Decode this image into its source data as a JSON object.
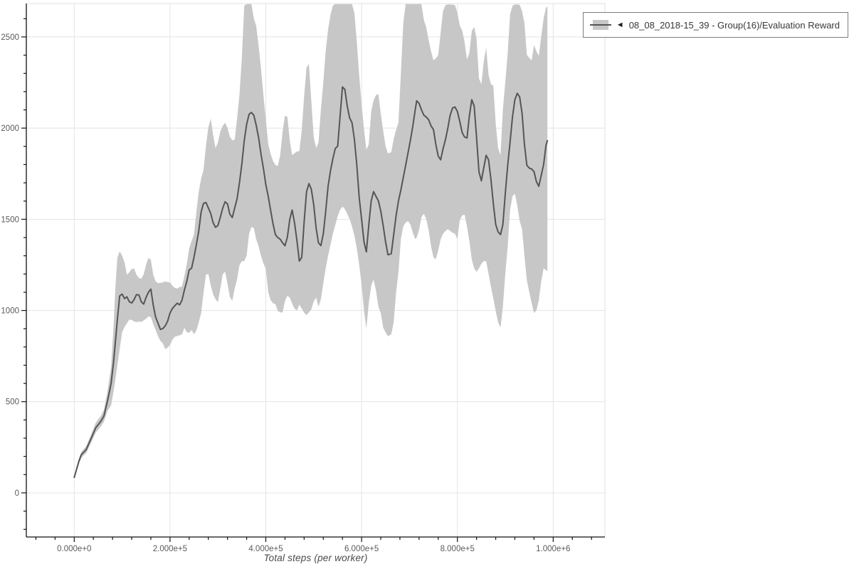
{
  "colors": {
    "line": "#555555",
    "band": "#c7c7c7",
    "grid": "#e4e4e4",
    "plot_border": "#e0e0e0",
    "axis": "#111111",
    "tick_text": "#5a5a5a",
    "legend_border": "#7d7d7d",
    "background": "#ffffff"
  },
  "legend": {
    "collapse_icon": "◄",
    "label": "08_08_2018-15_39 - Group(16)/Evaluation Reward"
  },
  "axes": {
    "x_title": "Total steps (per worker)"
  },
  "chart_data": {
    "type": "line",
    "title": "",
    "xlabel": "Total steps (per worker)",
    "ylabel": "",
    "grid": true,
    "legend_position": "top-right",
    "xlim": [
      -100000,
      1108000
    ],
    "ylim": [
      -242,
      2683
    ],
    "x_ticks": [
      0,
      200000,
      400000,
      600000,
      800000,
      1000000
    ],
    "x_tick_labels": [
      "0.000e+0",
      "2.000e+5",
      "4.000e+5",
      "6.000e+5",
      "8.000e+5",
      "1.000e+6"
    ],
    "x_minor_step": 40000,
    "y_ticks": [
      0,
      500,
      1000,
      1500,
      2000,
      2500
    ],
    "y_tick_labels": [
      "0",
      "500",
      "1000",
      "1500",
      "2000",
      "2500"
    ],
    "y_minor_step": 100,
    "x_unit_multiplier": 1000,
    "series": [
      {
        "name": "08_08_2018-15_39 - Group(16)/Evaluation Reward",
        "line_color": "#555555",
        "band_color": "#c7c7c7",
        "x_k": [
          0,
          10,
          15,
          25,
          35,
          45,
          55,
          62,
          70,
          77,
          82,
          86,
          90,
          95,
          100,
          105,
          110,
          115,
          120,
          125,
          130,
          135,
          140,
          145,
          150,
          155,
          160,
          165,
          170,
          175,
          180,
          185,
          190,
          195,
          200,
          205,
          210,
          215,
          220,
          225,
          230,
          235,
          240,
          245,
          250,
          255,
          260,
          265,
          270,
          275,
          280,
          285,
          290,
          295,
          300,
          305,
          310,
          315,
          320,
          325,
          330,
          335,
          340,
          345,
          350,
          355,
          360,
          365,
          370,
          375,
          380,
          385,
          390,
          395,
          400,
          405,
          410,
          415,
          420,
          425,
          430,
          435,
          440,
          445,
          450,
          455,
          460,
          465,
          470,
          475,
          480,
          485,
          490,
          495,
          500,
          505,
          510,
          515,
          520,
          525,
          530,
          535,
          540,
          545,
          550,
          555,
          560,
          565,
          570,
          575,
          580,
          585,
          590,
          595,
          600,
          605,
          610,
          615,
          620,
          625,
          630,
          635,
          640,
          645,
          650,
          655,
          662,
          667,
          672,
          677,
          682,
          687,
          692,
          697,
          702,
          707,
          712,
          715,
          720,
          725,
          730,
          735,
          740,
          745,
          750,
          755,
          760,
          765,
          770,
          775,
          780,
          785,
          790,
          795,
          800,
          805,
          810,
          815,
          820,
          825,
          830,
          835,
          840,
          845,
          850,
          855,
          860,
          865,
          870,
          875,
          880,
          885,
          890,
          895,
          900,
          905,
          910,
          915,
          920,
          925,
          930,
          935,
          940,
          945,
          950,
          955,
          960,
          965,
          970,
          975,
          980,
          985,
          988
        ],
        "mean": [
          85,
          175,
          210,
          237,
          297,
          357,
          390,
          421,
          510,
          600,
          715,
          830,
          950,
          1080,
          1090,
          1065,
          1075,
          1048,
          1041,
          1060,
          1087,
          1085,
          1048,
          1035,
          1072,
          1100,
          1117,
          1030,
          963,
          930,
          896,
          901,
          916,
          941,
          986,
          1011,
          1026,
          1040,
          1031,
          1056,
          1112,
          1160,
          1222,
          1232,
          1292,
          1360,
          1436,
          1540,
          1588,
          1592,
          1563,
          1532,
          1481,
          1456,
          1466,
          1511,
          1561,
          1596,
          1584,
          1528,
          1510,
          1562,
          1612,
          1701,
          1806,
          1931,
          2021,
          2076,
          2086,
          2070,
          2016,
          1947,
          1856,
          1780,
          1691,
          1626,
          1551,
          1476,
          1416,
          1400,
          1391,
          1371,
          1355,
          1402,
          1500,
          1551,
          1480,
          1381,
          1271,
          1291,
          1482,
          1651,
          1696,
          1666,
          1581,
          1451,
          1371,
          1356,
          1421,
          1541,
          1681,
          1766,
          1832,
          1888,
          1901,
          2062,
          2226,
          2212,
          2121,
          2056,
          2030,
          1938,
          1796,
          1621,
          1501,
          1376,
          1321,
          1468,
          1601,
          1652,
          1626,
          1601,
          1546,
          1466,
          1376,
          1306,
          1311,
          1416,
          1521,
          1601,
          1661,
          1730,
          1796,
          1866,
          1936,
          2012,
          2101,
          2150,
          2136,
          2100,
          2071,
          2060,
          2046,
          2012,
          1992,
          1911,
          1846,
          1826,
          1886,
          1936,
          2001,
          2072,
          2111,
          2116,
          2091,
          2036,
          1976,
          1951,
          1946,
          2066,
          2156,
          2121,
          1951,
          1761,
          1711,
          1781,
          1851,
          1826,
          1721,
          1586,
          1471,
          1431,
          1416,
          1471,
          1641,
          1796,
          1921,
          2061,
          2156,
          2191,
          2171,
          2081,
          1911,
          1796,
          1781,
          1776,
          1761,
          1706,
          1681,
          1741,
          1801,
          1906,
          1931
        ],
        "lower": [
          75,
          160,
          193,
          218,
          273,
          330,
          362,
          390,
          452,
          480,
          555,
          625,
          700,
          790,
          880,
          910,
          930,
          950,
          948,
          940,
          936,
          940,
          936,
          946,
          955,
          968,
          963,
          925,
          893,
          858,
          833,
          820,
          788,
          796,
          811,
          840,
          856,
          860,
          864,
          869,
          905,
          880,
          878,
          893,
          870,
          890,
          935,
          985,
          1098,
          1196,
          1201,
          1138,
          1088,
          1062,
          1045,
          1121,
          1198,
          1213,
          1146,
          1074,
          1053,
          1121,
          1170,
          1249,
          1271,
          1271,
          1302,
          1420,
          1458,
          1452,
          1390,
          1352,
          1299,
          1258,
          1229,
          1101,
          1058,
          1040,
          1035,
          998,
          990,
          989,
          1052,
          1081,
          1070,
          1038,
          1010,
          1000,
          1032,
          1010,
          988,
          975,
          990,
          1005,
          1050,
          1071,
          1020,
          1061,
          1150,
          1231,
          1300,
          1360,
          1421,
          1468,
          1518,
          1551,
          1570,
          1556,
          1531,
          1500,
          1461,
          1410,
          1340,
          1251,
          1142,
          1000,
          900,
          1040,
          1136,
          1171,
          1110,
          1021,
          986,
          906,
          880,
          858,
          870,
          936,
          1101,
          1210,
          1392,
          1462,
          1482,
          1490,
          1470,
          1426,
          1391,
          1400,
          1442,
          1512,
          1531,
          1501,
          1440,
          1352,
          1291,
          1281,
          1331,
          1391,
          1421,
          1436,
          1446,
          1436,
          1426,
          1421,
          1391,
          1496,
          1521,
          1526,
          1460,
          1381,
          1281,
          1231,
          1212,
          1231,
          1256,
          1271,
          1271,
          1201,
          1131,
          1066,
          996,
          936,
          906,
          1021,
          1201,
          1351,
          1551,
          1626,
          1641,
          1576,
          1491,
          1446,
          1301,
          1166,
          1101,
          1041,
          986,
          1001,
          1056,
          1161,
          1231,
          1221,
          1216
        ],
        "upper": [
          95,
          190,
          225,
          256,
          320,
          385,
          420,
          455,
          565,
          690,
          910,
          1130,
          1290,
          1325,
          1300,
          1265,
          1195,
          1210,
          1228,
          1230,
          1196,
          1178,
          1174,
          1198,
          1252,
          1288,
          1278,
          1196,
          1160,
          1150,
          1151,
          1154,
          1160,
          1155,
          1154,
          1136,
          1124,
          1120,
          1129,
          1131,
          1188,
          1255,
          1340,
          1380,
          1418,
          1540,
          1652,
          1722,
          1772,
          1904,
          2003,
          2052,
          1962,
          1890,
          1921,
          1982,
          2012,
          2030,
          2001,
          1952,
          1934,
          1936,
          2052,
          2183,
          2390,
          2672,
          2680,
          2680,
          2680,
          2600,
          2561,
          2452,
          2322,
          2182,
          2050,
          1912,
          1860,
          1820,
          1798,
          1792,
          1852,
          1981,
          2068,
          2062,
          1932,
          1851,
          1862,
          1872,
          1873,
          1988,
          2172,
          2332,
          2352,
          2152,
          1951,
          1890,
          1921,
          2101,
          2252,
          2421,
          2541,
          2621,
          2672,
          2680,
          2680,
          2680,
          2680,
          2680,
          2680,
          2680,
          2680,
          2631,
          2472,
          2290,
          2131,
          1991,
          1881,
          1912,
          2092,
          2152,
          2181,
          2186,
          2081,
          1986,
          1901,
          1861,
          1868,
          1941,
          1991,
          2030,
          2302,
          2576,
          2680,
          2680,
          2680,
          2680,
          2680,
          2680,
          2680,
          2680,
          2592,
          2552,
          2482,
          2421,
          2372,
          2382,
          2402,
          2522,
          2642,
          2675,
          2678,
          2678,
          2677,
          2675,
          2631,
          2562,
          2536,
          2472,
          2376,
          2412,
          2532,
          2556,
          2491,
          2272,
          2241,
          2362,
          2442,
          2292,
          2242,
          2232,
          2022,
          1891,
          1851,
          2101,
          2252,
          2412,
          2622,
          2671,
          2678,
          2678,
          2676,
          2641,
          2576,
          2402,
          2386,
          2371,
          2456,
          2421,
          2396,
          2502,
          2602,
          2661,
          2666
        ]
      }
    ]
  }
}
